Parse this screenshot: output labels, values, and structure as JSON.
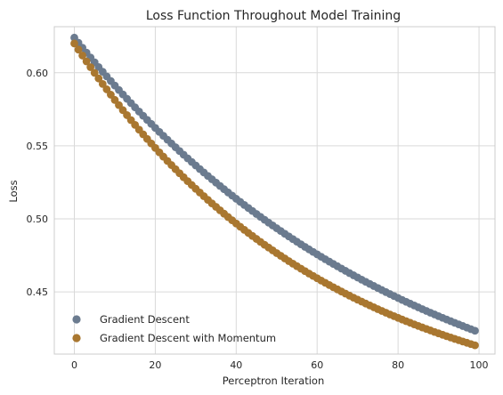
{
  "chart_data": {
    "type": "scatter",
    "title": "Loss Function Throughout Model Training",
    "xlabel": "Perceptron Iteration",
    "ylabel": "Loss",
    "xlim": [
      -4.95,
      103.95
    ],
    "ylim": [
      0.4075,
      0.6315
    ],
    "xticks": [
      0,
      20,
      40,
      60,
      80,
      100
    ],
    "yticks": [
      0.45,
      0.5,
      0.55,
      0.6
    ],
    "ytick_labels": [
      "0.45",
      "0.50",
      "0.55",
      "0.60"
    ],
    "grid": true,
    "legend_position": "lower-left",
    "x_range": [
      0,
      99
    ],
    "series": [
      {
        "name": "Gradient Descent",
        "color": "#6b7b8f",
        "start": 0.624,
        "end": 0.4235,
        "curvature_k": 1.2
      },
      {
        "name": "Gradient Descent with Momentum",
        "color": "#a97730",
        "start": 0.62,
        "end": 0.4135,
        "curvature_k": 1.6
      }
    ]
  }
}
